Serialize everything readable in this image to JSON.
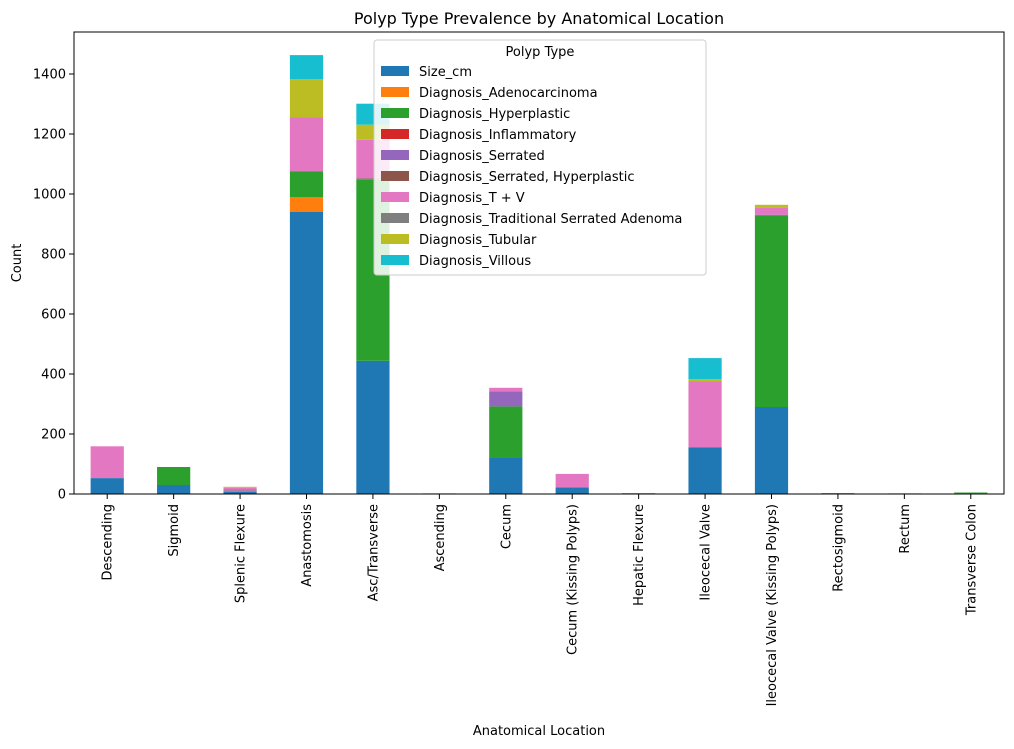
{
  "chart_data": {
    "type": "bar",
    "stacked": true,
    "title": "Polyp Type Prevalence by Anatomical Location",
    "xlabel": "Anatomical Location",
    "ylabel": "Count",
    "ylim": [
      0,
      1540
    ],
    "yticks": [
      0,
      200,
      400,
      600,
      800,
      1000,
      1200,
      1400
    ],
    "grid": false,
    "legend": {
      "title": "Polyp Type",
      "position": "top-center"
    },
    "categories": [
      "Descending",
      "Sigmoid",
      "Splenic Flexure",
      "Anastomosis",
      "Asc/Transverse",
      "Ascending",
      "Cecum",
      "Cecum (Kissing Polyps)",
      "Hepatic Flexure",
      "Ileocecal Valve",
      "Ileocecal Valve (Kissing Polyps)",
      "Rectosigmoid",
      "Rectum",
      "Transverse Colon"
    ],
    "series": [
      {
        "name": "Size_cm",
        "color": "#1f77b4",
        "values": [
          53,
          30,
          8,
          940,
          444,
          2,
          120,
          22,
          1,
          155,
          290,
          2,
          2,
          2
        ]
      },
      {
        "name": "Diagnosis_Adenocarcinoma",
        "color": "#ff7f0e",
        "values": [
          0,
          0,
          3,
          50,
          0,
          0,
          0,
          0,
          0,
          0,
          0,
          0,
          0,
          0
        ]
      },
      {
        "name": "Diagnosis_Hyperplastic",
        "color": "#2ca02c",
        "values": [
          0,
          60,
          0,
          85,
          605,
          0,
          172,
          0,
          0,
          0,
          638,
          1,
          0,
          3
        ]
      },
      {
        "name": "Diagnosis_Inflammatory",
        "color": "#d62728",
        "values": [
          0,
          0,
          0,
          0,
          0,
          0,
          0,
          0,
          0,
          0,
          0,
          0,
          0,
          0
        ]
      },
      {
        "name": "Diagnosis_Serrated",
        "color": "#9467bd",
        "values": [
          0,
          0,
          5,
          0,
          2,
          0,
          50,
          0,
          0,
          0,
          3,
          0,
          0,
          0
        ]
      },
      {
        "name": "Diagnosis_Serrated, Hyperplastic",
        "color": "#8c564b",
        "values": [
          0,
          0,
          0,
          0,
          2,
          0,
          0,
          0,
          0,
          0,
          0,
          0,
          0,
          0
        ]
      },
      {
        "name": "Diagnosis_T + V",
        "color": "#e377c2",
        "values": [
          106,
          0,
          5,
          180,
          128,
          0,
          12,
          45,
          2,
          220,
          25,
          0,
          0,
          0
        ]
      },
      {
        "name": "Diagnosis_Traditional Serrated Adenoma",
        "color": "#7f7f7f",
        "values": [
          0,
          0,
          0,
          0,
          0,
          0,
          0,
          0,
          0,
          0,
          0,
          0,
          0,
          0
        ]
      },
      {
        "name": "Diagnosis_Tubular",
        "color": "#bcbd22",
        "values": [
          0,
          0,
          3,
          128,
          50,
          0,
          0,
          0,
          0,
          8,
          8,
          0,
          0,
          0
        ]
      },
      {
        "name": "Diagnosis_Villous",
        "color": "#17becf",
        "values": [
          0,
          0,
          0,
          80,
          70,
          0,
          0,
          0,
          0,
          70,
          0,
          0,
          0,
          0
        ]
      }
    ]
  }
}
